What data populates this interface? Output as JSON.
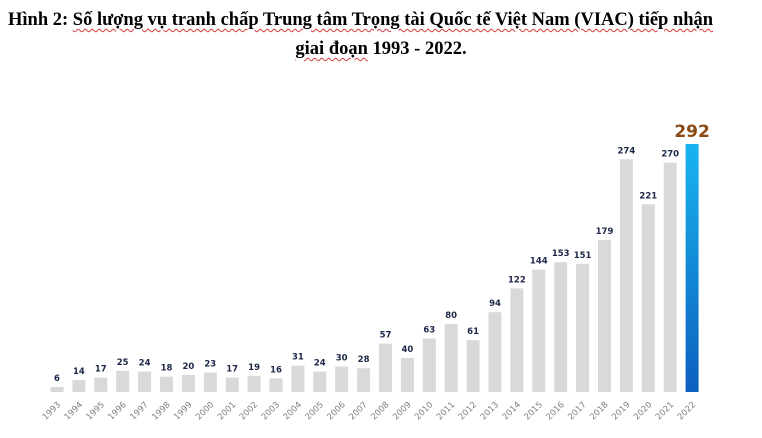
{
  "figure": {
    "title_line1_prefix": "Hình 2: ",
    "title_line1_underlined": "Số lượng vụ tranh chấp Trung tâm Trọng tài Quốc tế Việt Nam (VIAC) tiếp nhận",
    "title_line2_underlined": "giai đoạn",
    "title_line2_rest": " 1993 - 2022."
  },
  "chart_data": {
    "type": "bar",
    "title": "Hình 2: Số lượng vụ tranh chấp Trung tâm Trọng tài Quốc tế Việt Nam (VIAC) tiếp nhận giai đoạn 1993 - 2022.",
    "xlabel": "",
    "ylabel": "",
    "categories": [
      "1993",
      "1994",
      "1995",
      "1996",
      "1997",
      "1998",
      "1999",
      "2000",
      "2001",
      "2002",
      "2003",
      "2004",
      "2005",
      "2006",
      "2007",
      "2008",
      "2009",
      "2010",
      "2011",
      "2012",
      "2013",
      "2014",
      "2015",
      "2016",
      "2017",
      "2018",
      "2019",
      "2020",
      "2021",
      "2022"
    ],
    "values": [
      6,
      14,
      17,
      25,
      24,
      18,
      20,
      23,
      17,
      19,
      16,
      31,
      24,
      30,
      28,
      57,
      40,
      63,
      80,
      61,
      94,
      122,
      144,
      153,
      151,
      179,
      274,
      221,
      270,
      292
    ],
    "ylim": [
      0,
      292
    ],
    "grid": false,
    "legend": "none",
    "highlight_category": "2022",
    "colors": {
      "bar": "#d9d9d9",
      "highlight_top": "#19b4ef",
      "highlight_bottom": "#0d5fbe",
      "label": "#1c2747",
      "highlight_label": "#8a4a12",
      "tick": "#7f7f7f"
    }
  }
}
